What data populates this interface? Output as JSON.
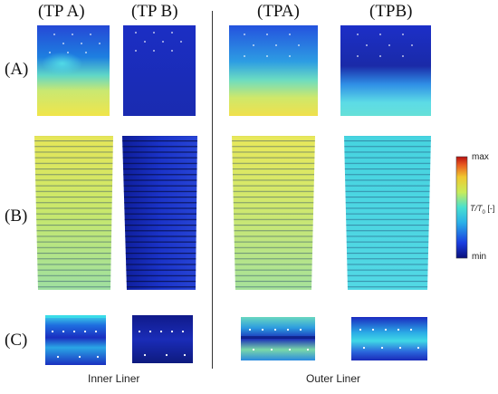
{
  "columns": {
    "tp_a": "(TP A)",
    "tp_b": "(TP B)",
    "tpa": "(TPA)",
    "tpb": "(TPB)"
  },
  "rows": {
    "a": "(A)",
    "b": "(B)",
    "c": "(C)"
  },
  "groups": {
    "inner": "Inner Liner",
    "outer": "Outer Liner"
  },
  "colorbar": {
    "max": "max",
    "min": "min",
    "label_main": "T/T",
    "label_sub": "0",
    "label_unit": " [-]"
  },
  "colors": {
    "yellow": "#f2e64a",
    "cyan": "#40d2e0",
    "blue": "#1f3ad8",
    "dark_blue": "#0a1a8a"
  }
}
